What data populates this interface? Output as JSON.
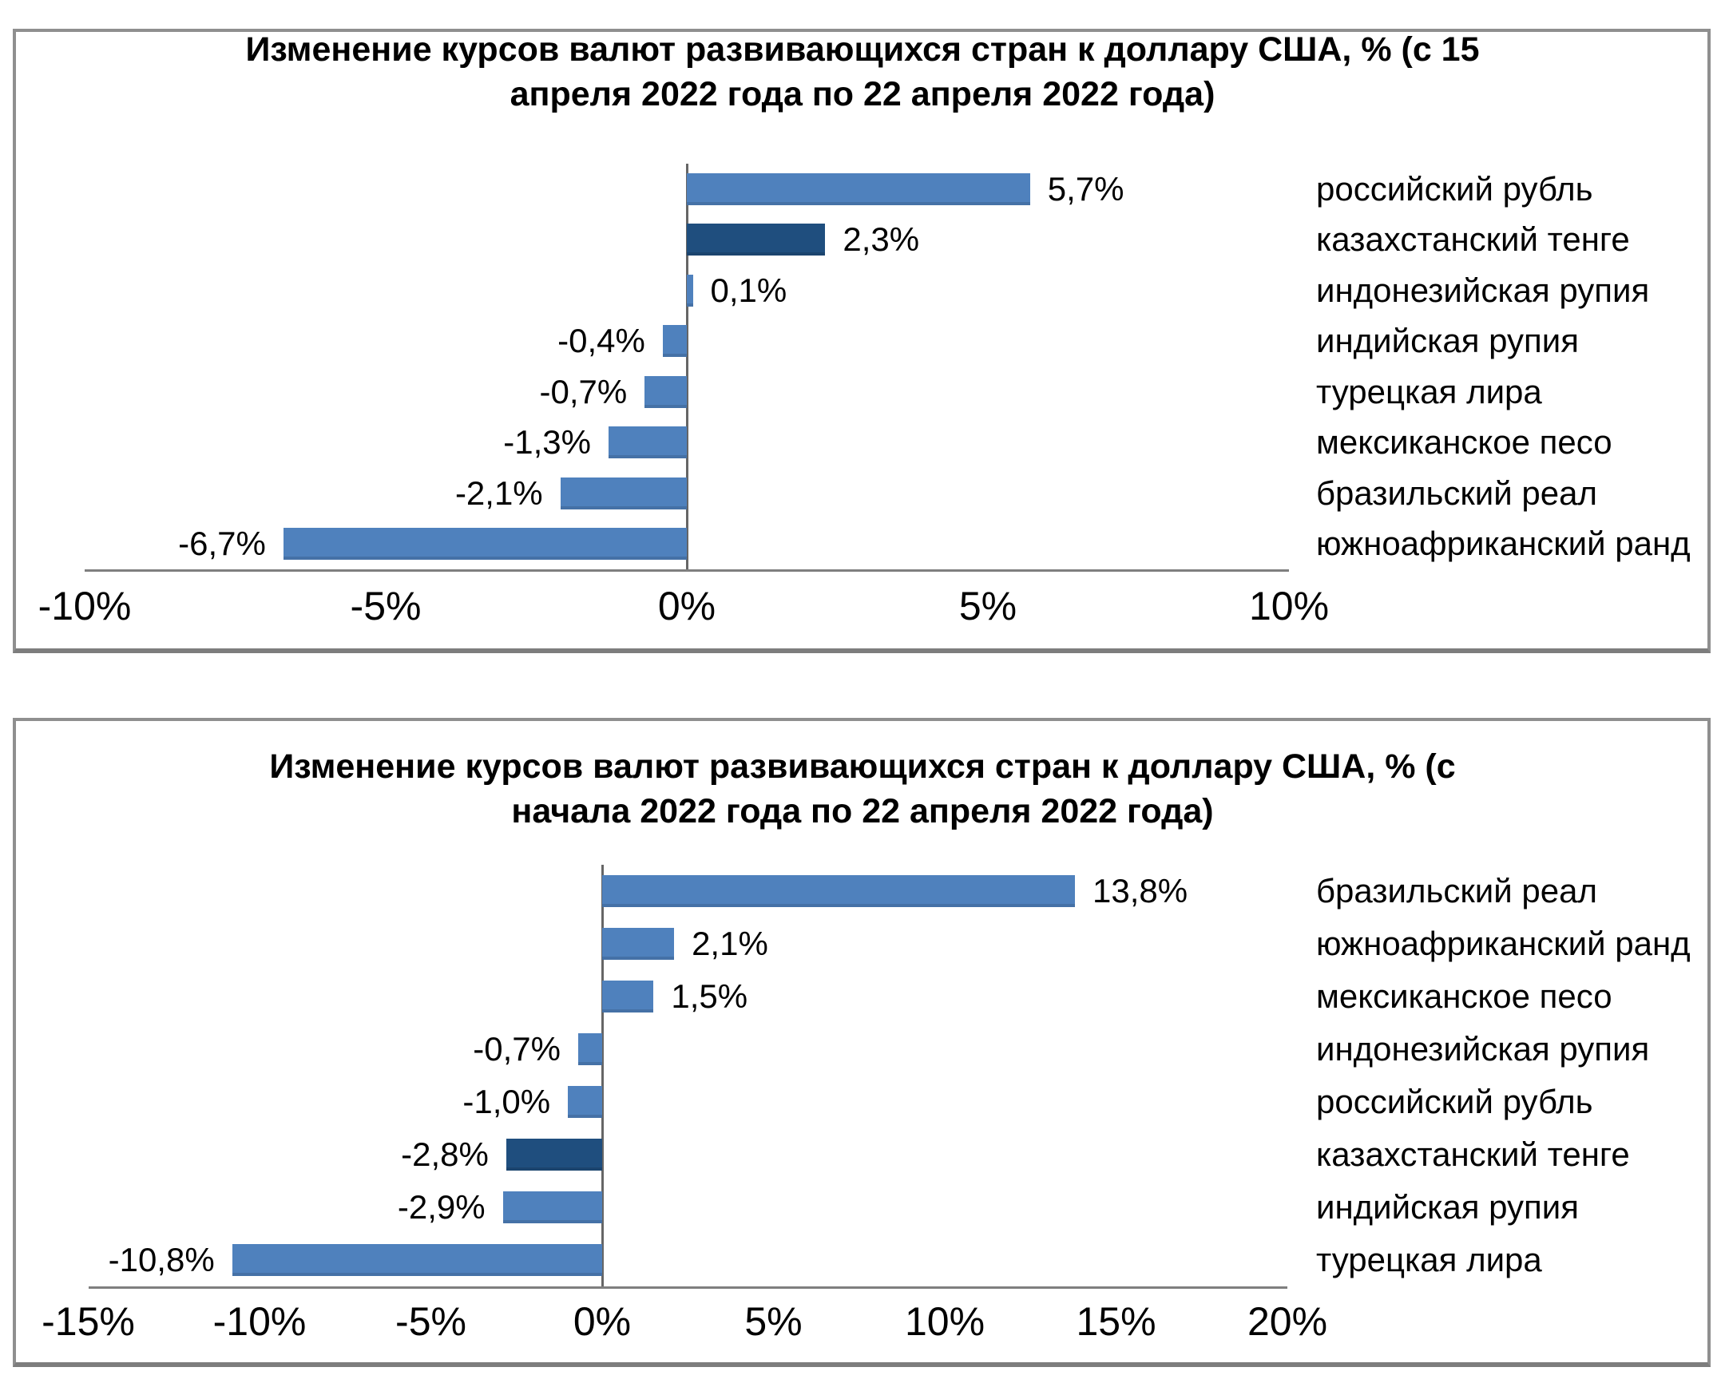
{
  "page": {
    "background": "#ffffff"
  },
  "colors": {
    "bar_default": "#4F81BD",
    "bar_highlight": "#1F4E7E",
    "axis_line": "#7f7f7f",
    "zero_line": "#666666",
    "panel_border": "#8f8f8f",
    "text": "#000000"
  },
  "chart_data": [
    {
      "type": "bar",
      "orientation": "horizontal",
      "title": "Изменение курсов валют развивающихся стран к доллару США, % (с 15 апреля 2022 года по 22 апреля 2022 года)",
      "title_lines": [
        "Изменение курсов валют развивающихся стран к доллару США, % (с 15",
        "апреля 2022 года по 22 апреля 2022 года)"
      ],
      "categories": [
        "российский рубль",
        "казахстанский тенге",
        "индонезийская рупия",
        "индийская рупия",
        "турецкая лира",
        "мексиканское песо",
        "бразильский реал",
        "южноафриканский ранд"
      ],
      "values": [
        5.7,
        2.3,
        0.1,
        -0.4,
        -0.7,
        -1.3,
        -2.1,
        -6.7
      ],
      "value_labels": [
        "5,7%",
        "2,3%",
        "0,1%",
        "-0,4%",
        "-0,7%",
        "-1,3%",
        "-2,1%",
        "-6,7%"
      ],
      "bar_colors": [
        "#4F81BD",
        "#1F4E7E",
        "#4F81BD",
        "#4F81BD",
        "#4F81BD",
        "#4F81BD",
        "#4F81BD",
        "#4F81BD"
      ],
      "xlabel": "",
      "ylabel": "",
      "xlim": [
        -10,
        10
      ],
      "xticks": [
        -10,
        -5,
        0,
        5,
        10
      ],
      "xtick_labels": [
        "-10%",
        "-5%",
        "0%",
        "5%",
        "10%"
      ],
      "grid": false,
      "legend": null
    },
    {
      "type": "bar",
      "orientation": "horizontal",
      "title": "Изменение курсов валют развивающихся стран к доллару США, % (с начала 2022 года по 22 апреля 2022 года)",
      "title_lines": [
        "Изменение курсов валют развивающихся стран к доллару США, % (с",
        "начала 2022 года по 22 апреля 2022 года)"
      ],
      "categories": [
        "бразильский реал",
        "южноафриканский ранд",
        "мексиканское песо",
        "индонезийская рупия",
        "российский рубль",
        "казахстанский тенге",
        "индийская рупия",
        "турецкая лира"
      ],
      "values": [
        13.8,
        2.1,
        1.5,
        -0.7,
        -1.0,
        -2.8,
        -2.9,
        -10.8
      ],
      "value_labels": [
        "13,8%",
        "2,1%",
        "1,5%",
        "-0,7%",
        "-1,0%",
        "-2,8%",
        "-2,9%",
        "-10,8%"
      ],
      "bar_colors": [
        "#4F81BD",
        "#4F81BD",
        "#4F81BD",
        "#4F81BD",
        "#4F81BD",
        "#1F4E7E",
        "#4F81BD",
        "#4F81BD"
      ],
      "xlabel": "",
      "ylabel": "",
      "xlim": [
        -15,
        20
      ],
      "xticks": [
        -15,
        -10,
        -5,
        0,
        5,
        10,
        15,
        20
      ],
      "xtick_labels": [
        "-15%",
        "-10%",
        "-5%",
        "0%",
        "5%",
        "10%",
        "15%",
        "20%"
      ],
      "grid": false,
      "legend": null
    }
  ]
}
